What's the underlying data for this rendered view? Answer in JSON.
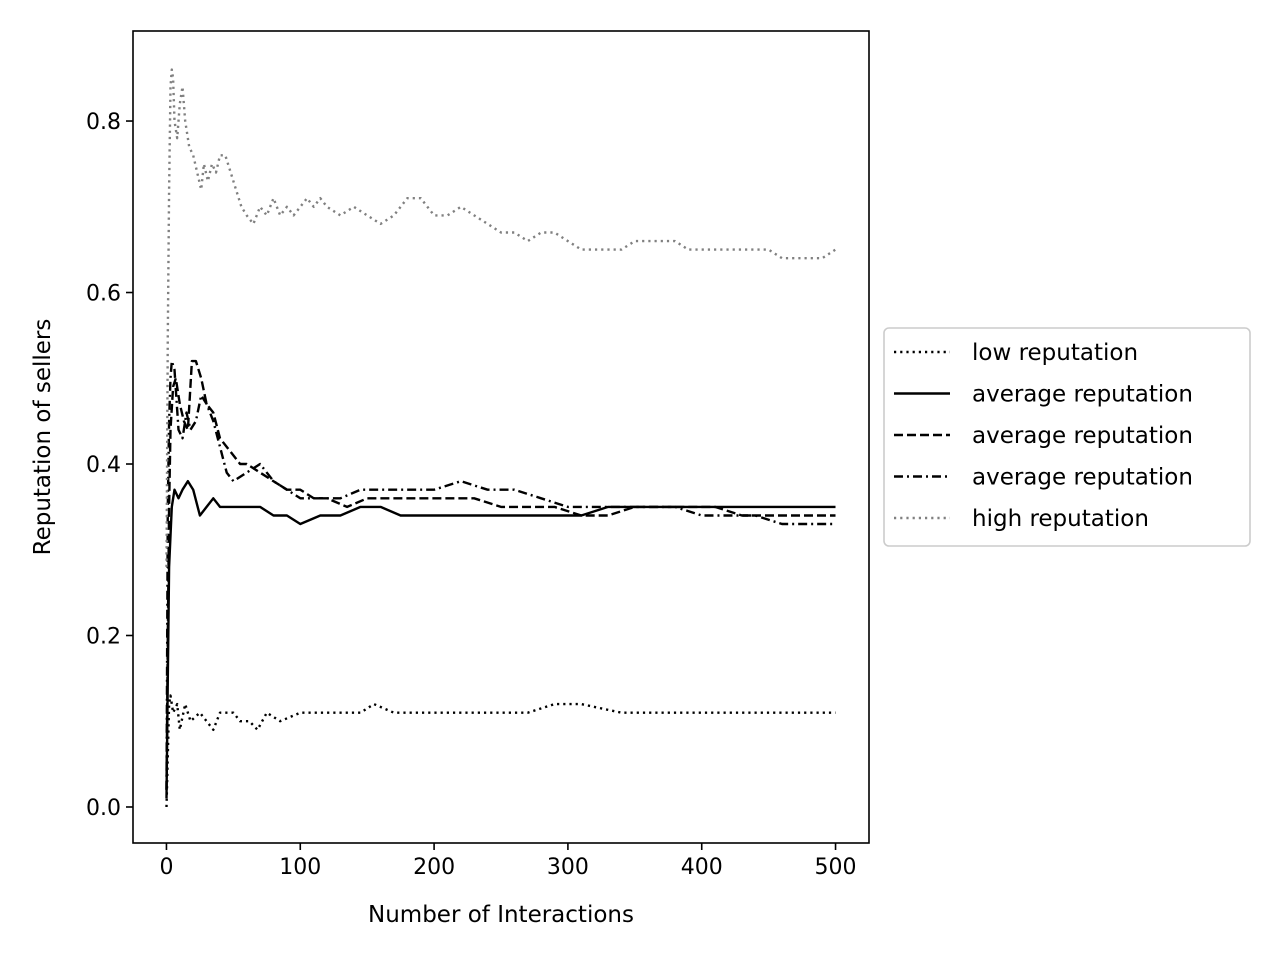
{
  "chart_data": {
    "type": "line",
    "title": "",
    "xlabel": "Number of Interactions",
    "ylabel": "Reputation of sellers",
    "xlim": [
      -25,
      525
    ],
    "ylim": [
      -0.042,
      0.905
    ],
    "xticks": [
      "0",
      "100",
      "200",
      "300",
      "400",
      "500"
    ],
    "xtick_values": [
      0,
      100,
      200,
      300,
      400,
      500
    ],
    "yticks": [
      "0.0",
      "0.2",
      "0.4",
      "0.6",
      "0.8"
    ],
    "ytick_values": [
      0.0,
      0.2,
      0.4,
      0.6,
      0.8
    ],
    "grid": false,
    "legend_position": "right",
    "series": [
      {
        "name": "low reputation",
        "style": "dotted",
        "color": "#000000",
        "points": [
          [
            0,
            0.0
          ],
          [
            1,
            0.06
          ],
          [
            2,
            0.12
          ],
          [
            3,
            0.13
          ],
          [
            5,
            0.11
          ],
          [
            8,
            0.12
          ],
          [
            10,
            0.09
          ],
          [
            14,
            0.12
          ],
          [
            18,
            0.1
          ],
          [
            25,
            0.11
          ],
          [
            30,
            0.1
          ],
          [
            35,
            0.09
          ],
          [
            40,
            0.11
          ],
          [
            50,
            0.11
          ],
          [
            55,
            0.1
          ],
          [
            62,
            0.1
          ],
          [
            68,
            0.09
          ],
          [
            75,
            0.11
          ],
          [
            85,
            0.1
          ],
          [
            100,
            0.11
          ],
          [
            115,
            0.11
          ],
          [
            130,
            0.11
          ],
          [
            145,
            0.11
          ],
          [
            155,
            0.12
          ],
          [
            170,
            0.11
          ],
          [
            190,
            0.11
          ],
          [
            210,
            0.11
          ],
          [
            225,
            0.11
          ],
          [
            250,
            0.11
          ],
          [
            270,
            0.11
          ],
          [
            290,
            0.12
          ],
          [
            310,
            0.12
          ],
          [
            340,
            0.11
          ],
          [
            360,
            0.11
          ],
          [
            380,
            0.11
          ],
          [
            400,
            0.11
          ],
          [
            440,
            0.11
          ],
          [
            470,
            0.11
          ],
          [
            500,
            0.11
          ]
        ]
      },
      {
        "name": "average reputation",
        "style": "solid",
        "color": "#000000",
        "points": [
          [
            0,
            0.01
          ],
          [
            1,
            0.15
          ],
          [
            2,
            0.28
          ],
          [
            4,
            0.35
          ],
          [
            6,
            0.37
          ],
          [
            9,
            0.36
          ],
          [
            12,
            0.37
          ],
          [
            16,
            0.38
          ],
          [
            20,
            0.37
          ],
          [
            25,
            0.34
          ],
          [
            30,
            0.35
          ],
          [
            35,
            0.36
          ],
          [
            40,
            0.35
          ],
          [
            50,
            0.35
          ],
          [
            60,
            0.35
          ],
          [
            70,
            0.35
          ],
          [
            80,
            0.34
          ],
          [
            90,
            0.34
          ],
          [
            100,
            0.33
          ],
          [
            115,
            0.34
          ],
          [
            130,
            0.34
          ],
          [
            145,
            0.35
          ],
          [
            160,
            0.35
          ],
          [
            175,
            0.34
          ],
          [
            190,
            0.34
          ],
          [
            210,
            0.34
          ],
          [
            230,
            0.34
          ],
          [
            250,
            0.34
          ],
          [
            270,
            0.34
          ],
          [
            290,
            0.34
          ],
          [
            310,
            0.34
          ],
          [
            330,
            0.35
          ],
          [
            350,
            0.35
          ],
          [
            370,
            0.35
          ],
          [
            390,
            0.35
          ],
          [
            410,
            0.35
          ],
          [
            430,
            0.35
          ],
          [
            450,
            0.35
          ],
          [
            470,
            0.35
          ],
          [
            490,
            0.35
          ],
          [
            500,
            0.35
          ]
        ]
      },
      {
        "name": "average reputation",
        "style": "dashed",
        "color": "#000000",
        "points": [
          [
            0,
            0.02
          ],
          [
            1,
            0.2
          ],
          [
            2,
            0.35
          ],
          [
            3,
            0.44
          ],
          [
            5,
            0.49
          ],
          [
            7,
            0.5
          ],
          [
            10,
            0.47
          ],
          [
            13,
            0.45
          ],
          [
            16,
            0.44
          ],
          [
            19,
            0.52
          ],
          [
            22,
            0.52
          ],
          [
            26,
            0.5
          ],
          [
            30,
            0.47
          ],
          [
            35,
            0.46
          ],
          [
            40,
            0.43
          ],
          [
            45,
            0.42
          ],
          [
            50,
            0.41
          ],
          [
            55,
            0.4
          ],
          [
            60,
            0.4
          ],
          [
            70,
            0.39
          ],
          [
            80,
            0.38
          ],
          [
            90,
            0.37
          ],
          [
            100,
            0.37
          ],
          [
            110,
            0.36
          ],
          [
            120,
            0.36
          ],
          [
            135,
            0.35
          ],
          [
            150,
            0.36
          ],
          [
            170,
            0.36
          ],
          [
            190,
            0.36
          ],
          [
            210,
            0.36
          ],
          [
            230,
            0.36
          ],
          [
            250,
            0.35
          ],
          [
            270,
            0.35
          ],
          [
            290,
            0.35
          ],
          [
            310,
            0.34
          ],
          [
            330,
            0.34
          ],
          [
            350,
            0.35
          ],
          [
            370,
            0.35
          ],
          [
            390,
            0.35
          ],
          [
            410,
            0.35
          ],
          [
            430,
            0.34
          ],
          [
            450,
            0.34
          ],
          [
            470,
            0.34
          ],
          [
            490,
            0.34
          ],
          [
            500,
            0.34
          ]
        ]
      },
      {
        "name": "average reputation",
        "style": "dashdot",
        "color": "#000000",
        "points": [
          [
            0,
            0.02
          ],
          [
            1,
            0.35
          ],
          [
            2,
            0.45
          ],
          [
            3,
            0.5
          ],
          [
            4,
            0.52
          ],
          [
            6,
            0.51
          ],
          [
            9,
            0.44
          ],
          [
            12,
            0.43
          ],
          [
            15,
            0.46
          ],
          [
            18,
            0.44
          ],
          [
            22,
            0.45
          ],
          [
            26,
            0.48
          ],
          [
            30,
            0.47
          ],
          [
            35,
            0.45
          ],
          [
            40,
            0.42
          ],
          [
            45,
            0.39
          ],
          [
            50,
            0.38
          ],
          [
            60,
            0.39
          ],
          [
            70,
            0.4
          ],
          [
            80,
            0.38
          ],
          [
            90,
            0.37
          ],
          [
            100,
            0.36
          ],
          [
            115,
            0.36
          ],
          [
            130,
            0.36
          ],
          [
            145,
            0.37
          ],
          [
            160,
            0.37
          ],
          [
            180,
            0.37
          ],
          [
            200,
            0.37
          ],
          [
            220,
            0.38
          ],
          [
            240,
            0.37
          ],
          [
            260,
            0.37
          ],
          [
            280,
            0.36
          ],
          [
            300,
            0.35
          ],
          [
            320,
            0.35
          ],
          [
            340,
            0.35
          ],
          [
            360,
            0.35
          ],
          [
            380,
            0.35
          ],
          [
            400,
            0.34
          ],
          [
            420,
            0.34
          ],
          [
            440,
            0.34
          ],
          [
            460,
            0.33
          ],
          [
            480,
            0.33
          ],
          [
            500,
            0.33
          ]
        ]
      },
      {
        "name": "high reputation",
        "style": "dotted",
        "color": "#808080",
        "points": [
          [
            0,
            0.28
          ],
          [
            1,
            0.55
          ],
          [
            2,
            0.72
          ],
          [
            3,
            0.84
          ],
          [
            4,
            0.86
          ],
          [
            5,
            0.85
          ],
          [
            6,
            0.8
          ],
          [
            8,
            0.78
          ],
          [
            10,
            0.82
          ],
          [
            12,
            0.84
          ],
          [
            14,
            0.8
          ],
          [
            17,
            0.77
          ],
          [
            20,
            0.76
          ],
          [
            23,
            0.74
          ],
          [
            26,
            0.72
          ],
          [
            28,
            0.75
          ],
          [
            31,
            0.73
          ],
          [
            34,
            0.75
          ],
          [
            37,
            0.74
          ],
          [
            40,
            0.76
          ],
          [
            44,
            0.76
          ],
          [
            48,
            0.74
          ],
          [
            52,
            0.72
          ],
          [
            56,
            0.7
          ],
          [
            60,
            0.69
          ],
          [
            65,
            0.68
          ],
          [
            70,
            0.7
          ],
          [
            75,
            0.69
          ],
          [
            80,
            0.71
          ],
          [
            85,
            0.69
          ],
          [
            90,
            0.7
          ],
          [
            95,
            0.69
          ],
          [
            100,
            0.7
          ],
          [
            105,
            0.71
          ],
          [
            110,
            0.7
          ],
          [
            115,
            0.71
          ],
          [
            120,
            0.7
          ],
          [
            130,
            0.69
          ],
          [
            140,
            0.7
          ],
          [
            150,
            0.69
          ],
          [
            160,
            0.68
          ],
          [
            170,
            0.69
          ],
          [
            180,
            0.71
          ],
          [
            190,
            0.71
          ],
          [
            200,
            0.69
          ],
          [
            210,
            0.69
          ],
          [
            220,
            0.7
          ],
          [
            230,
            0.69
          ],
          [
            240,
            0.68
          ],
          [
            250,
            0.67
          ],
          [
            260,
            0.67
          ],
          [
            270,
            0.66
          ],
          [
            280,
            0.67
          ],
          [
            290,
            0.67
          ],
          [
            300,
            0.66
          ],
          [
            310,
            0.65
          ],
          [
            320,
            0.65
          ],
          [
            330,
            0.65
          ],
          [
            340,
            0.65
          ],
          [
            350,
            0.66
          ],
          [
            360,
            0.66
          ],
          [
            370,
            0.66
          ],
          [
            380,
            0.66
          ],
          [
            390,
            0.65
          ],
          [
            400,
            0.65
          ],
          [
            410,
            0.65
          ],
          [
            420,
            0.65
          ],
          [
            430,
            0.65
          ],
          [
            440,
            0.65
          ],
          [
            450,
            0.65
          ],
          [
            460,
            0.64
          ],
          [
            470,
            0.64
          ],
          [
            480,
            0.64
          ],
          [
            490,
            0.64
          ],
          [
            500,
            0.65
          ]
        ]
      }
    ]
  }
}
